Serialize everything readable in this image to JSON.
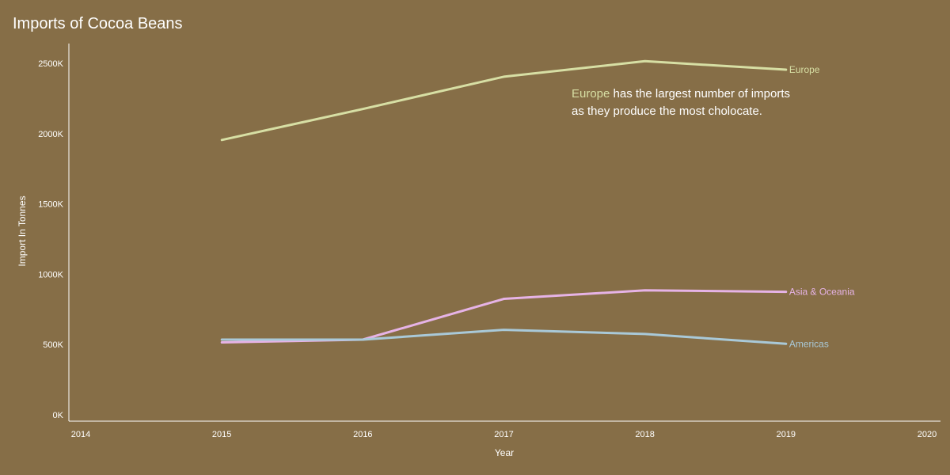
{
  "chart_data": {
    "type": "line",
    "title": "Imports of Cocoa Beans",
    "xlabel": "Year",
    "ylabel": "Import In Tonnes",
    "x": [
      2015,
      2016,
      2017,
      2018,
      2019
    ],
    "xlim": [
      2014,
      2020
    ],
    "x_ticks": [
      "2014",
      "2015",
      "2016",
      "2017",
      "2018",
      "2019",
      "2020"
    ],
    "ylim": [
      0,
      2700000
    ],
    "y_ticks": [
      {
        "value": 0,
        "label": "0K"
      },
      {
        "value": 500000,
        "label": "500K"
      },
      {
        "value": 1000000,
        "label": "1000K"
      },
      {
        "value": 1500000,
        "label": "1500K"
      },
      {
        "value": 2000000,
        "label": "2000K"
      },
      {
        "value": 2500000,
        "label": "2500K"
      }
    ],
    "grid": false,
    "series": [
      {
        "name": "Europe",
        "color": "#d7dfa4",
        "values": [
          2000000,
          2220000,
          2450000,
          2560000,
          2500000
        ]
      },
      {
        "name": "Asia & Oceania",
        "color": "#e6b3e6",
        "values": [
          560000,
          580000,
          870000,
          930000,
          920000
        ]
      },
      {
        "name": "Americas",
        "color": "#a9c9d8",
        "values": [
          580000,
          580000,
          650000,
          620000,
          550000
        ]
      }
    ],
    "annotation": {
      "highlight": "Europe",
      "highlight_color": "#d7dfa4",
      "line1_rest": " has the largest number of imports",
      "line2": "as they produce the most cholocate."
    },
    "text_color": "#ffffff"
  }
}
